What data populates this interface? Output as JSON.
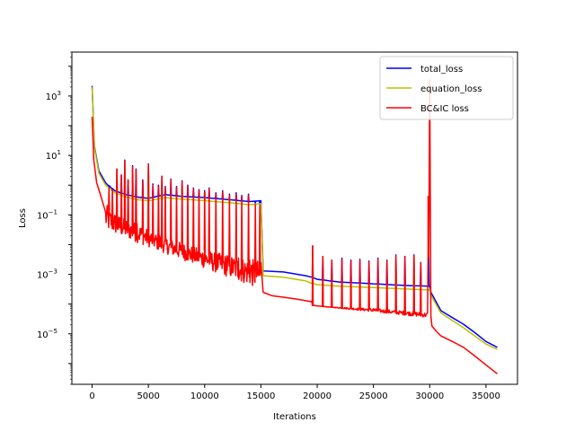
{
  "chart_data": {
    "type": "line",
    "title": "",
    "xlabel": "Iterations",
    "ylabel": "Loss",
    "xscale": "linear",
    "yscale": "log",
    "xlim": [
      -1800,
      37800
    ],
    "ylim": [
      2e-07,
      30000
    ],
    "xticks": [
      0,
      5000,
      10000,
      15000,
      20000,
      25000,
      30000,
      35000
    ],
    "xtick_labels": [
      "0",
      "5000",
      "10000",
      "15000",
      "20000",
      "25000",
      "30000",
      "35000"
    ],
    "yticks": [
      1e-05,
      0.001,
      0.1,
      10,
      1000
    ],
    "ytick_labels": [
      "10",
      "10",
      "10",
      "10",
      "10"
    ],
    "ytick_exponents": [
      "−5",
      "−3",
      "−1",
      "1",
      "3"
    ],
    "grid": false,
    "legend": "top-right",
    "series": [
      {
        "name": "total_loss",
        "color": "#0000ff",
        "baseline": [
          [
            0,
            2200
          ],
          [
            200,
            20
          ],
          [
            600,
            3
          ],
          [
            1200,
            1.2
          ],
          [
            2000,
            0.65
          ],
          [
            3000,
            0.48
          ],
          [
            4000,
            0.4
          ],
          [
            5000,
            0.36
          ],
          [
            6500,
            0.48
          ],
          [
            8000,
            0.42
          ],
          [
            10000,
            0.38
          ],
          [
            12000,
            0.33
          ],
          [
            14000,
            0.28
          ],
          [
            15000,
            0.3
          ],
          [
            15200,
            0.0013
          ],
          [
            17000,
            0.0012
          ],
          [
            19000,
            0.0009
          ],
          [
            19500,
            0.0008
          ],
          [
            20000,
            0.00068
          ],
          [
            22000,
            0.00055
          ],
          [
            25000,
            0.00048
          ],
          [
            28000,
            0.00042
          ],
          [
            30000,
            0.0004
          ],
          [
            30100,
            0.00025
          ],
          [
            31000,
            6e-05
          ],
          [
            32000,
            3.5e-05
          ],
          [
            33000,
            2.1e-05
          ],
          [
            34000,
            1.1e-05
          ],
          [
            35000,
            5.5e-06
          ],
          [
            36000,
            3.5e-06
          ]
        ],
        "spikes": [
          [
            1500,
            0.8
          ],
          [
            1800,
            0.7
          ],
          [
            2200,
            3.5
          ],
          [
            2600,
            2.2
          ],
          [
            2900,
            7
          ],
          [
            3200,
            1.5
          ],
          [
            3600,
            4.5
          ],
          [
            3900,
            3.5
          ],
          [
            4500,
            1.5
          ],
          [
            5000,
            5.2
          ],
          [
            5400,
            1.1
          ],
          [
            5900,
            1.0
          ],
          [
            6200,
            2.0
          ],
          [
            6500,
            0.9
          ],
          [
            7000,
            1.6
          ],
          [
            7500,
            0.9
          ],
          [
            8000,
            1.4
          ],
          [
            8500,
            1.0
          ],
          [
            9000,
            0.8
          ],
          [
            9500,
            0.7
          ],
          [
            10000,
            0.65
          ],
          [
            10400,
            0.8
          ],
          [
            11000,
            0.55
          ],
          [
            11600,
            0.65
          ],
          [
            12200,
            0.5
          ],
          [
            12800,
            0.55
          ],
          [
            13300,
            0.45
          ],
          [
            13900,
            0.5
          ],
          [
            14500,
            0.25
          ],
          [
            14900,
            0.22
          ],
          [
            19600,
            0.009
          ],
          [
            20500,
            0.004
          ],
          [
            21300,
            0.003
          ],
          [
            22200,
            0.0035
          ],
          [
            23000,
            0.003
          ],
          [
            23800,
            0.0032
          ],
          [
            24600,
            0.0028
          ],
          [
            25400,
            0.0035
          ],
          [
            26200,
            0.003
          ],
          [
            27000,
            0.0045
          ],
          [
            27800,
            0.004
          ],
          [
            28600,
            0.0045
          ],
          [
            29200,
            0.0025
          ],
          [
            29900,
            0.004
          ]
        ]
      },
      {
        "name": "equation_loss",
        "color": "#bfbf00",
        "baseline": [
          [
            0,
            2000
          ],
          [
            200,
            18
          ],
          [
            600,
            2.5
          ],
          [
            1200,
            1.0
          ],
          [
            2000,
            0.55
          ],
          [
            3000,
            0.4
          ],
          [
            4000,
            0.33
          ],
          [
            5000,
            0.3
          ],
          [
            6500,
            0.38
          ],
          [
            8000,
            0.34
          ],
          [
            10000,
            0.3
          ],
          [
            12000,
            0.26
          ],
          [
            14000,
            0.22
          ],
          [
            15000,
            0.24
          ],
          [
            15200,
            0.0009
          ],
          [
            17000,
            0.0008
          ],
          [
            19000,
            0.0006
          ],
          [
            19500,
            0.0005
          ],
          [
            20000,
            0.00045
          ],
          [
            22000,
            0.0004
          ],
          [
            25000,
            0.00036
          ],
          [
            28000,
            0.00032
          ],
          [
            30000,
            0.0003
          ],
          [
            30100,
            0.0002
          ],
          [
            31000,
            5e-05
          ],
          [
            32000,
            2.8e-05
          ],
          [
            33000,
            1.6e-05
          ],
          [
            34000,
            8.5e-06
          ],
          [
            35000,
            4.5e-06
          ],
          [
            36000,
            3e-06
          ]
        ],
        "spikes": [
          [
            2200,
            3.0
          ],
          [
            2900,
            6.0
          ],
          [
            3600,
            4.0
          ],
          [
            5000,
            4.5
          ],
          [
            6200,
            1.8
          ],
          [
            8000,
            1.2
          ],
          [
            10000,
            0.55
          ],
          [
            12200,
            0.45
          ],
          [
            14500,
            0.2
          ],
          [
            19600,
            0.008
          ],
          [
            27000,
            0.004
          ],
          [
            28600,
            0.004
          ]
        ]
      },
      {
        "name": "BC&IC loss",
        "color": "#ff0000",
        "baseline": [
          [
            0,
            200
          ],
          [
            150,
            7
          ],
          [
            400,
            1.2
          ],
          [
            800,
            0.4
          ],
          [
            1500,
            0.15
          ],
          [
            2500,
            0.08
          ],
          [
            4000,
            0.05
          ],
          [
            5000,
            0.03
          ],
          [
            6000,
            0.02
          ],
          [
            7000,
            0.014
          ],
          [
            8000,
            0.011
          ],
          [
            9000,
            0.008
          ],
          [
            10000,
            0.0065
          ],
          [
            11000,
            0.005
          ],
          [
            12000,
            0.0042
          ],
          [
            13000,
            0.0035
          ],
          [
            14000,
            0.003
          ],
          [
            15000,
            0.0025
          ],
          [
            15200,
            0.00025
          ],
          [
            16000,
            0.00019
          ],
          [
            17000,
            0.00017
          ],
          [
            18000,
            0.00015
          ],
          [
            19000,
            0.00013
          ],
          [
            19500,
            0.00012
          ],
          [
            19600,
            9e-05
          ],
          [
            21000,
            8e-05
          ],
          [
            23000,
            7.5e-05
          ],
          [
            25000,
            7e-05
          ],
          [
            27000,
            6e-05
          ],
          [
            28500,
            5.5e-05
          ],
          [
            29800,
            5e-05
          ],
          [
            30000,
            3500
          ],
          [
            30100,
            4e-05
          ],
          [
            30200,
            1.8e-05
          ],
          [
            30600,
            1.2e-05
          ],
          [
            31000,
            8.5e-06
          ],
          [
            32000,
            5.5e-06
          ],
          [
            33000,
            3.5e-06
          ],
          [
            34000,
            1.8e-06
          ],
          [
            35000,
            9e-07
          ],
          [
            36000,
            4.5e-07
          ]
        ],
        "band": [
          [
            1200,
            0.03
          ],
          [
            15000,
            0.0003
          ],
          [
            19600,
            9e-05
          ],
          [
            29900,
            3.5e-05
          ]
        ],
        "spikes": [
          [
            1500,
            0.8
          ],
          [
            1800,
            0.7
          ],
          [
            2200,
            3.5
          ],
          [
            2600,
            2.2
          ],
          [
            2900,
            6.5
          ],
          [
            3200,
            1.5
          ],
          [
            3600,
            4.2
          ],
          [
            3900,
            3.2
          ],
          [
            4500,
            1.4
          ],
          [
            5000,
            5.0
          ],
          [
            5400,
            1.0
          ],
          [
            5900,
            0.9
          ],
          [
            6200,
            1.9
          ],
          [
            6500,
            0.85
          ],
          [
            7000,
            1.5
          ],
          [
            7500,
            0.85
          ],
          [
            8000,
            1.3
          ],
          [
            8500,
            0.95
          ],
          [
            9000,
            0.75
          ],
          [
            9500,
            0.65
          ],
          [
            10000,
            0.6
          ],
          [
            10400,
            0.75
          ],
          [
            11000,
            0.5
          ],
          [
            11600,
            0.6
          ],
          [
            12200,
            0.45
          ],
          [
            12800,
            0.5
          ],
          [
            13300,
            0.42
          ],
          [
            13900,
            0.45
          ],
          [
            14500,
            0.22
          ],
          [
            14900,
            0.2
          ],
          [
            19600,
            0.009
          ],
          [
            20500,
            0.004
          ],
          [
            21300,
            0.003
          ],
          [
            22200,
            0.0032
          ],
          [
            23000,
            0.0028
          ],
          [
            23800,
            0.003
          ],
          [
            24600,
            0.0026
          ],
          [
            25400,
            0.0032
          ],
          [
            26200,
            0.0028
          ],
          [
            27000,
            0.0042
          ],
          [
            27800,
            0.0038
          ],
          [
            28600,
            0.0042
          ],
          [
            29200,
            0.0024
          ],
          [
            29900,
            0.0038
          ]
        ]
      }
    ]
  }
}
